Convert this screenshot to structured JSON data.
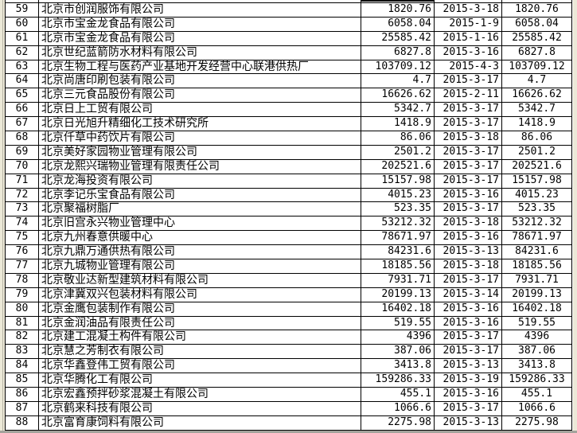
{
  "colors": {
    "canvas_background": "#ece9d8",
    "cell_background": "#ffffff",
    "grid_border": "#000000",
    "text": "#000000",
    "bottom_strip": "#a3a39c"
  },
  "table": {
    "visible_rows_first": "59",
    "visible_rows_last": "88",
    "rows": [
      {
        "no": "59",
        "company": "北京市创润服饰有限公司",
        "amount": "1820.76",
        "date": "2015-3-18",
        "amount2": "1820.76"
      },
      {
        "no": "60",
        "company": "北京市宝金龙食品有限公司",
        "amount": "6058.04",
        "date": "2015-1-9",
        "amount2": "6058.04"
      },
      {
        "no": "61",
        "company": "北京市宝金龙食品有限公司",
        "amount": "25585.42",
        "date": "2015-1-16",
        "amount2": "25585.42"
      },
      {
        "no": "62",
        "company": "北京世纪蓝箭防水材料有限公司",
        "amount": "6827.8",
        "date": "2015-3-16",
        "amount2": "6827.8"
      },
      {
        "no": "63",
        "company": "北京生物工程与医药产业基地开发经营中心联港供热厂",
        "amount": "103709.12",
        "date": "2015-4-3",
        "amount2": "103709.12"
      },
      {
        "no": "64",
        "company": "北京尚唐印刷包装有限公司",
        "amount": "4.7",
        "date": "2015-3-17",
        "amount2": "4.7"
      },
      {
        "no": "65",
        "company": "北京三元食品股份有限公司",
        "amount": "16626.62",
        "date": "2015-2-11",
        "amount2": "16626.62"
      },
      {
        "no": "66",
        "company": "北京日上工贸有限公司",
        "amount": "5342.7",
        "date": "2015-3-17",
        "amount2": "5342.7"
      },
      {
        "no": "67",
        "company": "北京日光旭升精细化工技术研究所",
        "amount": "1418.9",
        "date": "2015-3-17",
        "amount2": "1418.9"
      },
      {
        "no": "68",
        "company": "北京仟草中药饮片有限公司",
        "amount": "86.06",
        "date": "2015-3-18",
        "amount2": "86.06"
      },
      {
        "no": "69",
        "company": "北京美好家园物业管理有限公司",
        "amount": "2501.2",
        "date": "2015-3-17",
        "amount2": "2501.2"
      },
      {
        "no": "70",
        "company": "北京龙熙兴瑞物业管理有限责任公司",
        "amount": "202521.6",
        "date": "2015-3-17",
        "amount2": "202521.6"
      },
      {
        "no": "71",
        "company": "北京龙海投资有限公司",
        "amount": "15157.98",
        "date": "2015-3-17",
        "amount2": "15157.98"
      },
      {
        "no": "72",
        "company": "北京李记乐宝食品有限公司",
        "amount": "4015.23",
        "date": "2015-3-16",
        "amount2": "4015.23"
      },
      {
        "no": "73",
        "company": "北京聚福树脂厂",
        "amount": "523.35",
        "date": "2015-3-17",
        "amount2": "523.35"
      },
      {
        "no": "74",
        "company": "北京旧宫永兴物业管理中心",
        "amount": "53212.32",
        "date": "2015-3-18",
        "amount2": "53212.32"
      },
      {
        "no": "75",
        "company": "北京九州春意供暖中心",
        "amount": "78671.97",
        "date": "2015-3-16",
        "amount2": "78671.97"
      },
      {
        "no": "76",
        "company": "北京九鼎万通供热有限公司",
        "amount": "84231.6",
        "date": "2015-3-13",
        "amount2": "84231.6"
      },
      {
        "no": "77",
        "company": "北京九城物业管理有限公司",
        "amount": "18185.56",
        "date": "2015-3-18",
        "amount2": "18185.56"
      },
      {
        "no": "78",
        "company": "北京敬业达新型建筑材料有限公司",
        "amount": "7931.71",
        "date": "2015-3-17",
        "amount2": "7931.71"
      },
      {
        "no": "79",
        "company": "北京津冀双兴包装材料有限公司",
        "amount": "20199.13",
        "date": "2015-3-14",
        "amount2": "20199.13"
      },
      {
        "no": "80",
        "company": "北京金鹰包装制作有限公司",
        "amount": "16402.18",
        "date": "2015-3-16",
        "amount2": "16402.18"
      },
      {
        "no": "81",
        "company": "北京金润油品有限责任公司",
        "amount": "519.55",
        "date": "2015-3-16",
        "amount2": "519.55"
      },
      {
        "no": "82",
        "company": "北京建工混凝土构件有限公司",
        "amount": "4396",
        "date": "2015-3-17",
        "amount2": "4396"
      },
      {
        "no": "83",
        "company": "北京慧之芳制衣有限公司",
        "amount": "387.06",
        "date": "2015-3-17",
        "amount2": "387.06"
      },
      {
        "no": "84",
        "company": "北京华鑫登伟工贸有限公司",
        "amount": "3413.8",
        "date": "2015-3-13",
        "amount2": "3413.8"
      },
      {
        "no": "85",
        "company": "北京华腾化工有限公司",
        "amount": "159286.33",
        "date": "2015-3-19",
        "amount2": "159286.33"
      },
      {
        "no": "86",
        "company": "北京宏鑫预拌砂浆混凝土有限公司",
        "amount": "455.1",
        "date": "2015-3-16",
        "amount2": "455.1"
      },
      {
        "no": "87",
        "company": "北京鹤来科技有限公司",
        "amount": "1066.6",
        "date": "2015-3-17",
        "amount2": "1066.6"
      },
      {
        "no": "88",
        "company": "北京富育康饲料有限公司",
        "amount": "2275.98",
        "date": "2015-3-13",
        "amount2": "2275.98"
      }
    ]
  }
}
